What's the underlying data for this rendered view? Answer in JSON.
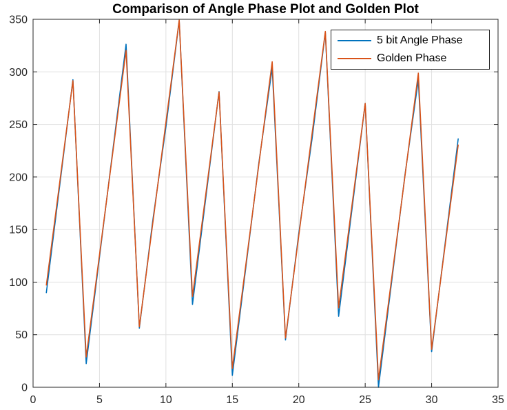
{
  "title": "Comparison of Angle Phase Plot and Golden Plot",
  "colors": {
    "background": "#FFFFFF",
    "axis_box": "#262626",
    "grid": "#E0E0E0",
    "tick_label": "#262626",
    "title_text": "#000000",
    "legend_border": "#1A1A1A",
    "series_blue": "#0072BD",
    "series_orange": "#D95319"
  },
  "chart_data": {
    "type": "line",
    "title": "Comparison of Angle Phase Plot and Golden Plot",
    "xlabel": "",
    "ylabel": "",
    "xlim": [
      0,
      35
    ],
    "ylim": [
      0,
      350
    ],
    "xticks": [
      0,
      5,
      10,
      15,
      20,
      25,
      30,
      35
    ],
    "yticks": [
      0,
      50,
      100,
      150,
      200,
      250,
      300,
      350
    ],
    "grid": true,
    "legend_position": "top-right",
    "x": [
      1,
      2,
      3,
      4,
      5,
      6,
      7,
      8,
      9,
      10,
      11,
      12,
      13,
      14,
      15,
      16,
      17,
      18,
      19,
      20,
      21,
      22,
      23,
      24,
      25,
      26,
      27,
      28,
      29,
      30,
      31,
      32
    ],
    "series": [
      {
        "name": "5 bit Angle Phase",
        "color": "#0072BD",
        "values": [
          90,
          191.25,
          292.5,
          22.5,
          123.75,
          225,
          326.25,
          56.25,
          157.5,
          247.5,
          348.75,
          78.75,
          180,
          281.25,
          11.25,
          112.5,
          213.75,
          303.75,
          45,
          146.25,
          236.25,
          337.5,
          67.5,
          168.75,
          270,
          0,
          101.25,
          202.5,
          292.5,
          33.75,
          135,
          236.25
        ]
      },
      {
        "name": "Golden Phase",
        "color": "#D95319",
        "values": [
          97.2,
          194.4,
          291.6,
          28.8,
          126,
          223.2,
          320.4,
          57.6,
          154.8,
          252,
          349.2,
          86.4,
          183.6,
          280.8,
          18,
          115.2,
          212.4,
          309.6,
          46.8,
          144,
          241.2,
          338.4,
          75.6,
          172.8,
          270,
          7.2,
          104.4,
          201.6,
          298.8,
          36,
          133.2,
          230.4
        ]
      }
    ]
  }
}
